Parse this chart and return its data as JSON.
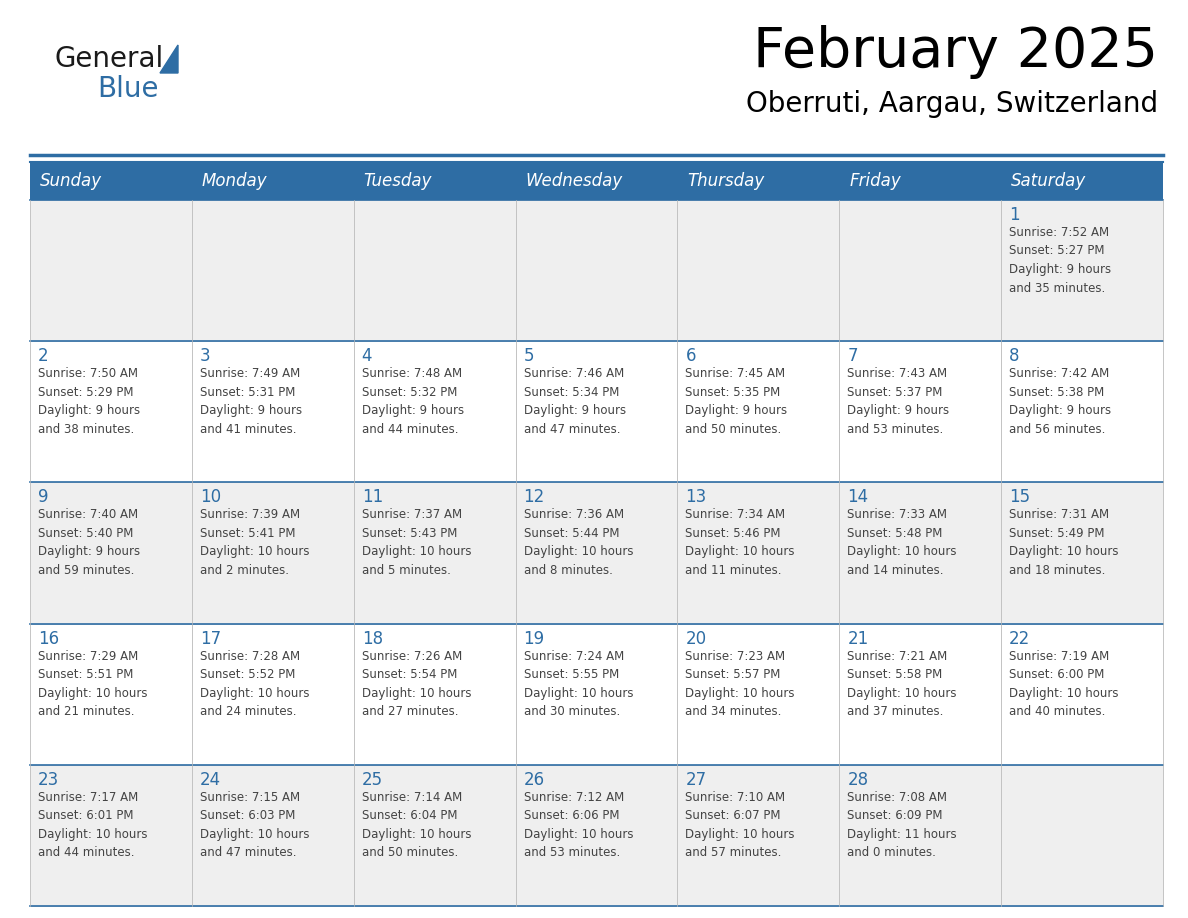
{
  "title": "February 2025",
  "subtitle": "Oberruti, Aargau, Switzerland",
  "header_bg": "#2E6DA4",
  "header_text_color": "#FFFFFF",
  "cell_bg_gray": "#EFEFEF",
  "cell_bg_white": "#FFFFFF",
  "day_number_color": "#2E6DA4",
  "text_color": "#444444",
  "border_color": "#2E6DA4",
  "days_of_week": [
    "Sunday",
    "Monday",
    "Tuesday",
    "Wednesday",
    "Thursday",
    "Friday",
    "Saturday"
  ],
  "weeks": [
    [
      {
        "day": null,
        "info": null
      },
      {
        "day": null,
        "info": null
      },
      {
        "day": null,
        "info": null
      },
      {
        "day": null,
        "info": null
      },
      {
        "day": null,
        "info": null
      },
      {
        "day": null,
        "info": null
      },
      {
        "day": "1",
        "info": "Sunrise: 7:52 AM\nSunset: 5:27 PM\nDaylight: 9 hours\nand 35 minutes."
      }
    ],
    [
      {
        "day": "2",
        "info": "Sunrise: 7:50 AM\nSunset: 5:29 PM\nDaylight: 9 hours\nand 38 minutes."
      },
      {
        "day": "3",
        "info": "Sunrise: 7:49 AM\nSunset: 5:31 PM\nDaylight: 9 hours\nand 41 minutes."
      },
      {
        "day": "4",
        "info": "Sunrise: 7:48 AM\nSunset: 5:32 PM\nDaylight: 9 hours\nand 44 minutes."
      },
      {
        "day": "5",
        "info": "Sunrise: 7:46 AM\nSunset: 5:34 PM\nDaylight: 9 hours\nand 47 minutes."
      },
      {
        "day": "6",
        "info": "Sunrise: 7:45 AM\nSunset: 5:35 PM\nDaylight: 9 hours\nand 50 minutes."
      },
      {
        "day": "7",
        "info": "Sunrise: 7:43 AM\nSunset: 5:37 PM\nDaylight: 9 hours\nand 53 minutes."
      },
      {
        "day": "8",
        "info": "Sunrise: 7:42 AM\nSunset: 5:38 PM\nDaylight: 9 hours\nand 56 minutes."
      }
    ],
    [
      {
        "day": "9",
        "info": "Sunrise: 7:40 AM\nSunset: 5:40 PM\nDaylight: 9 hours\nand 59 minutes."
      },
      {
        "day": "10",
        "info": "Sunrise: 7:39 AM\nSunset: 5:41 PM\nDaylight: 10 hours\nand 2 minutes."
      },
      {
        "day": "11",
        "info": "Sunrise: 7:37 AM\nSunset: 5:43 PM\nDaylight: 10 hours\nand 5 minutes."
      },
      {
        "day": "12",
        "info": "Sunrise: 7:36 AM\nSunset: 5:44 PM\nDaylight: 10 hours\nand 8 minutes."
      },
      {
        "day": "13",
        "info": "Sunrise: 7:34 AM\nSunset: 5:46 PM\nDaylight: 10 hours\nand 11 minutes."
      },
      {
        "day": "14",
        "info": "Sunrise: 7:33 AM\nSunset: 5:48 PM\nDaylight: 10 hours\nand 14 minutes."
      },
      {
        "day": "15",
        "info": "Sunrise: 7:31 AM\nSunset: 5:49 PM\nDaylight: 10 hours\nand 18 minutes."
      }
    ],
    [
      {
        "day": "16",
        "info": "Sunrise: 7:29 AM\nSunset: 5:51 PM\nDaylight: 10 hours\nand 21 minutes."
      },
      {
        "day": "17",
        "info": "Sunrise: 7:28 AM\nSunset: 5:52 PM\nDaylight: 10 hours\nand 24 minutes."
      },
      {
        "day": "18",
        "info": "Sunrise: 7:26 AM\nSunset: 5:54 PM\nDaylight: 10 hours\nand 27 minutes."
      },
      {
        "day": "19",
        "info": "Sunrise: 7:24 AM\nSunset: 5:55 PM\nDaylight: 10 hours\nand 30 minutes."
      },
      {
        "day": "20",
        "info": "Sunrise: 7:23 AM\nSunset: 5:57 PM\nDaylight: 10 hours\nand 34 minutes."
      },
      {
        "day": "21",
        "info": "Sunrise: 7:21 AM\nSunset: 5:58 PM\nDaylight: 10 hours\nand 37 minutes."
      },
      {
        "day": "22",
        "info": "Sunrise: 7:19 AM\nSunset: 6:00 PM\nDaylight: 10 hours\nand 40 minutes."
      }
    ],
    [
      {
        "day": "23",
        "info": "Sunrise: 7:17 AM\nSunset: 6:01 PM\nDaylight: 10 hours\nand 44 minutes."
      },
      {
        "day": "24",
        "info": "Sunrise: 7:15 AM\nSunset: 6:03 PM\nDaylight: 10 hours\nand 47 minutes."
      },
      {
        "day": "25",
        "info": "Sunrise: 7:14 AM\nSunset: 6:04 PM\nDaylight: 10 hours\nand 50 minutes."
      },
      {
        "day": "26",
        "info": "Sunrise: 7:12 AM\nSunset: 6:06 PM\nDaylight: 10 hours\nand 53 minutes."
      },
      {
        "day": "27",
        "info": "Sunrise: 7:10 AM\nSunset: 6:07 PM\nDaylight: 10 hours\nand 57 minutes."
      },
      {
        "day": "28",
        "info": "Sunrise: 7:08 AM\nSunset: 6:09 PM\nDaylight: 11 hours\nand 0 minutes."
      },
      {
        "day": null,
        "info": null
      }
    ]
  ]
}
